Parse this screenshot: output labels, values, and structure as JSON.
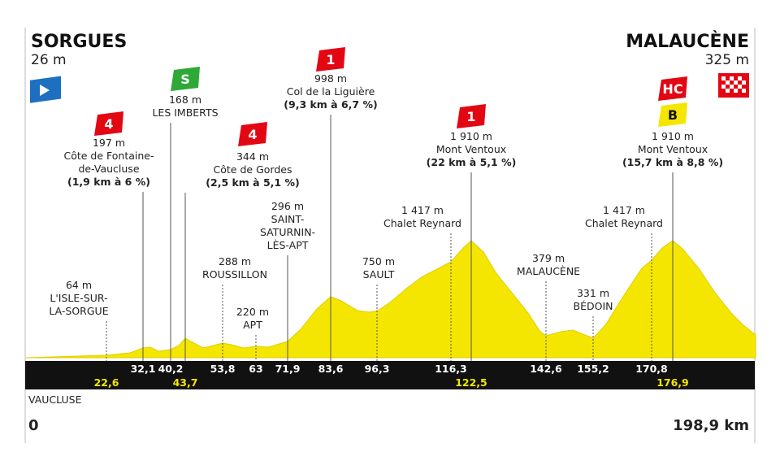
{
  "start": {
    "name": "SORGUES",
    "elevation": "26 m"
  },
  "finish": {
    "name": "MALAUCÈNE",
    "elevation": "325 m"
  },
  "points": [
    {
      "elevation": "64 m",
      "name": [
        "L'ISLE-SUR-",
        "LA-SORGUE"
      ],
      "km": "22,6"
    },
    {
      "elevation": "197 m",
      "name": [
        "Côte de Fontaine-",
        "de-Vaucluse"
      ],
      "climb": "(1,9 km à 6 %)",
      "badges": [
        "4"
      ],
      "km": "32,1"
    },
    {
      "elevation": "168 m",
      "name": [
        "LES IMBERTS"
      ],
      "badges": [
        "S"
      ],
      "km": "40,2"
    },
    {
      "elevation": "344 m",
      "name": [
        "Côte de Gordes"
      ],
      "climb": "(2,5 km à 5,1 %)",
      "badges": [
        "4"
      ],
      "km": "43,7"
    },
    {
      "elevation": "288 m",
      "name": [
        "ROUSSILLON"
      ],
      "km": "53,8"
    },
    {
      "elevation": "220 m",
      "name": [
        "APT"
      ],
      "km": "63"
    },
    {
      "elevation": "296 m",
      "name": [
        "SAINT-",
        "SATURNIN-",
        "LÈS-APT"
      ],
      "km": "71,9"
    },
    {
      "elevation": "998 m",
      "name": [
        "Col de la Liguière"
      ],
      "climb": "(9,3 km à 6,7 %)",
      "badges": [
        "1"
      ],
      "km": "83,6"
    },
    {
      "elevation": "750 m",
      "name": [
        "SAULT"
      ],
      "km": "96,3"
    },
    {
      "elevation": "1 417 m",
      "name": [
        "Chalet Reynard"
      ],
      "km": "116,3"
    },
    {
      "elevation": "1 910 m",
      "name": [
        "Mont Ventoux"
      ],
      "climb": "(22 km à 5,1 %)",
      "badges": [
        "1"
      ],
      "km": "122,5"
    },
    {
      "elevation": "379 m",
      "name": [
        "MALAUCÈNE"
      ],
      "km": "142,6"
    },
    {
      "elevation": "331 m",
      "name": [
        "BÉDOIN"
      ],
      "km": "155,2"
    },
    {
      "elevation": "1 417 m",
      "name": [
        "Chalet Reynard"
      ],
      "km": "170,8"
    },
    {
      "elevation": "1 910 m",
      "name": [
        "Mont Ventoux"
      ],
      "climb": "(15,7 km à 8,8 %)",
      "badges": [
        "HC",
        "B"
      ],
      "km": "176,9"
    }
  ],
  "region": "VAUCLUSE",
  "distance_start": "0",
  "distance_end": "198,9 km"
}
